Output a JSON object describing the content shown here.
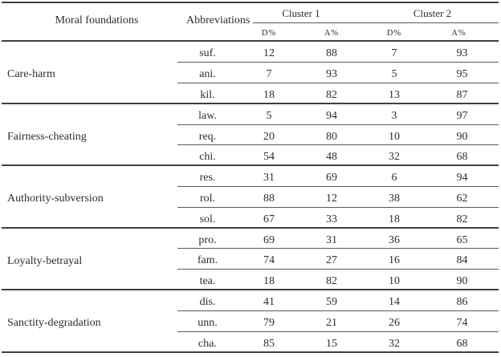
{
  "table": {
    "headers": {
      "moral_foundations": "Moral foundations",
      "abbreviations": "Abbreviations",
      "cluster1": "Cluster 1",
      "cluster2": "Cluster 2",
      "sub": {
        "d1": "D%",
        "a1": "A%",
        "d2": "D%",
        "a2": "A%"
      }
    },
    "groups": [
      {
        "foundation": "Care-harm",
        "rows": [
          {
            "abbr": "suf.",
            "values": [
              12,
              88,
              7,
              93
            ]
          },
          {
            "abbr": "ani.",
            "values": [
              7,
              93,
              5,
              95
            ]
          },
          {
            "abbr": "kil.",
            "values": [
              18,
              82,
              13,
              87
            ]
          }
        ]
      },
      {
        "foundation": "Fairness-cheating",
        "rows": [
          {
            "abbr": "law.",
            "values": [
              5,
              94,
              3,
              97
            ]
          },
          {
            "abbr": "req.",
            "values": [
              20,
              80,
              10,
              90
            ]
          },
          {
            "abbr": "chi.",
            "values": [
              54,
              48,
              32,
              68
            ]
          }
        ]
      },
      {
        "foundation": "Authority-subversion",
        "rows": [
          {
            "abbr": "res.",
            "values": [
              31,
              69,
              6,
              94
            ]
          },
          {
            "abbr": "rol.",
            "values": [
              88,
              12,
              38,
              62
            ]
          },
          {
            "abbr": "sol.",
            "values": [
              67,
              33,
              18,
              82
            ]
          }
        ]
      },
      {
        "foundation": "Loyalty-betrayal",
        "rows": [
          {
            "abbr": "pro.",
            "values": [
              69,
              31,
              36,
              65
            ]
          },
          {
            "abbr": "fam.",
            "values": [
              74,
              27,
              16,
              84
            ]
          },
          {
            "abbr": "tea.",
            "values": [
              18,
              82,
              10,
              90
            ]
          }
        ]
      },
      {
        "foundation": "Sanctity-degradation",
        "rows": [
          {
            "abbr": "dis.",
            "values": [
              41,
              59,
              14,
              86
            ]
          },
          {
            "abbr": "unn.",
            "values": [
              79,
              21,
              26,
              74
            ]
          },
          {
            "abbr": "cha.",
            "values": [
              85,
              15,
              32,
              68
            ]
          }
        ]
      }
    ]
  },
  "colors": {
    "text": "#2e2e2e",
    "line_thick": "#3f3f3f",
    "line_thin": "#595959"
  }
}
